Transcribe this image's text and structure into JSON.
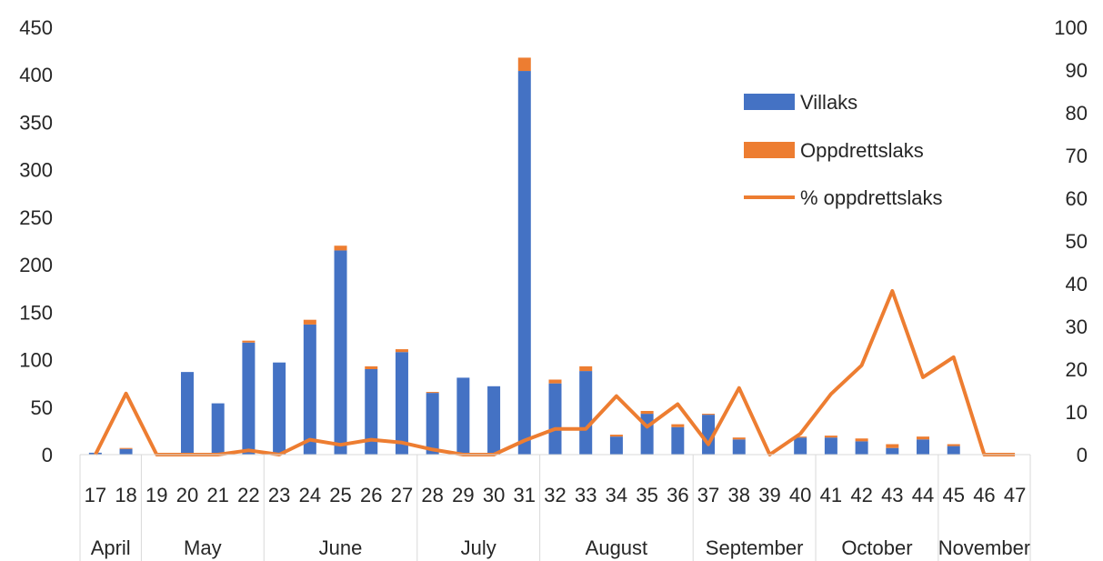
{
  "chart_data": {
    "type": "bar",
    "stacked": true,
    "categories": [
      "17",
      "18",
      "19",
      "20",
      "21",
      "22",
      "23",
      "24",
      "25",
      "26",
      "27",
      "28",
      "29",
      "30",
      "31",
      "32",
      "33",
      "34",
      "35",
      "36",
      "37",
      "38",
      "39",
      "40",
      "41",
      "42",
      "43",
      "44",
      "45",
      "46",
      "47"
    ],
    "month_groups": [
      {
        "label": "April",
        "categories": [
          "17",
          "18"
        ]
      },
      {
        "label": "May",
        "categories": [
          "19",
          "20",
          "21",
          "22"
        ]
      },
      {
        "label": "June",
        "categories": [
          "23",
          "24",
          "25",
          "26",
          "27"
        ]
      },
      {
        "label": "July",
        "categories": [
          "28",
          "29",
          "30",
          "31"
        ]
      },
      {
        "label": "August",
        "categories": [
          "32",
          "33",
          "34",
          "35",
          "36"
        ]
      },
      {
        "label": "September",
        "categories": [
          "37",
          "38",
          "39",
          "40"
        ]
      },
      {
        "label": "October",
        "categories": [
          "41",
          "42",
          "43",
          "44"
        ]
      },
      {
        "label": "November",
        "categories": [
          "45",
          "46",
          "47"
        ]
      }
    ],
    "series": [
      {
        "name": "Villaks",
        "kind": "bar",
        "axis": "left",
        "color": "#4472C4",
        "values": [
          2,
          6,
          0,
          87,
          54,
          118,
          97,
          137,
          215,
          90,
          108,
          65,
          81,
          72,
          404,
          75,
          88,
          19,
          43,
          29,
          42,
          16,
          0,
          18,
          18,
          14,
          7,
          16,
          9,
          0,
          0
        ]
      },
      {
        "name": "Oppdrettslaks",
        "kind": "bar",
        "axis": "left",
        "color": "#ED7D31",
        "values": [
          0,
          1,
          0,
          0,
          0,
          2,
          0,
          5,
          5,
          3,
          3,
          1,
          0,
          0,
          14,
          4,
          5,
          2,
          3,
          3,
          1,
          2,
          0,
          1,
          2,
          3,
          4,
          3,
          2,
          0,
          0
        ]
      },
      {
        "name": "% oppdrettslaks",
        "kind": "line",
        "axis": "right",
        "color": "#ED7D31",
        "values": [
          0,
          14.3,
          0,
          0,
          0,
          1,
          0,
          3.5,
          2.3,
          3.5,
          2.8,
          1.2,
          0,
          0,
          3.3,
          6,
          6,
          13.7,
          6.5,
          11.8,
          2.4,
          15.6,
          0,
          4.9,
          14.2,
          20.9,
          38.3,
          18.1,
          22.8,
          0,
          0
        ]
      }
    ],
    "ylim": [
      0,
      450
    ],
    "yticks": [
      0,
      50,
      100,
      150,
      200,
      250,
      300,
      350,
      400,
      450
    ],
    "y2lim": [
      0,
      100
    ],
    "y2ticks": [
      0,
      10,
      20,
      30,
      40,
      50,
      60,
      70,
      80,
      90,
      100
    ],
    "legend_position": "top-right",
    "grid": false
  }
}
